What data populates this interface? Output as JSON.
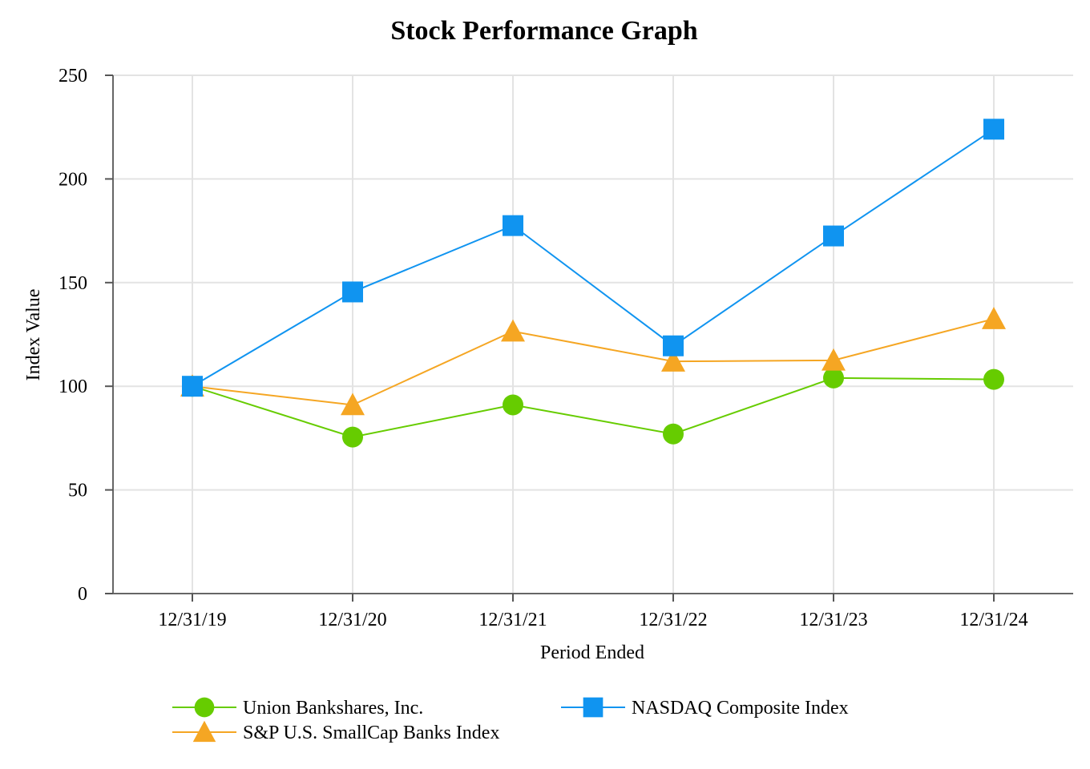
{
  "chart_data": {
    "type": "line",
    "title": "Stock Performance Graph",
    "xlabel": "Period Ended",
    "ylabel": "Index Value",
    "ylim": [
      0,
      250
    ],
    "yticks": [
      0,
      50,
      100,
      150,
      200,
      250
    ],
    "grid": true,
    "legend_position": "bottom",
    "categories": [
      "12/31/19",
      "12/31/20",
      "12/31/21",
      "12/31/22",
      "12/31/23",
      "12/31/24"
    ],
    "series": [
      {
        "name": "Union Bankshares, Inc.",
        "marker": "circle",
        "color": "#66cc00",
        "values": [
          100,
          75.5,
          91,
          77,
          104,
          103.3
        ]
      },
      {
        "name": "S&P U.S. SmallCap Banks Index",
        "marker": "triangle",
        "color": "#f5a623",
        "values": [
          100,
          91,
          126.5,
          112,
          112.5,
          132.5
        ]
      },
      {
        "name": "NASDAQ Composite Index",
        "marker": "square",
        "color": "#1094f0",
        "values": [
          100,
          145.5,
          177.5,
          119.5,
          172.5,
          224
        ]
      }
    ]
  }
}
